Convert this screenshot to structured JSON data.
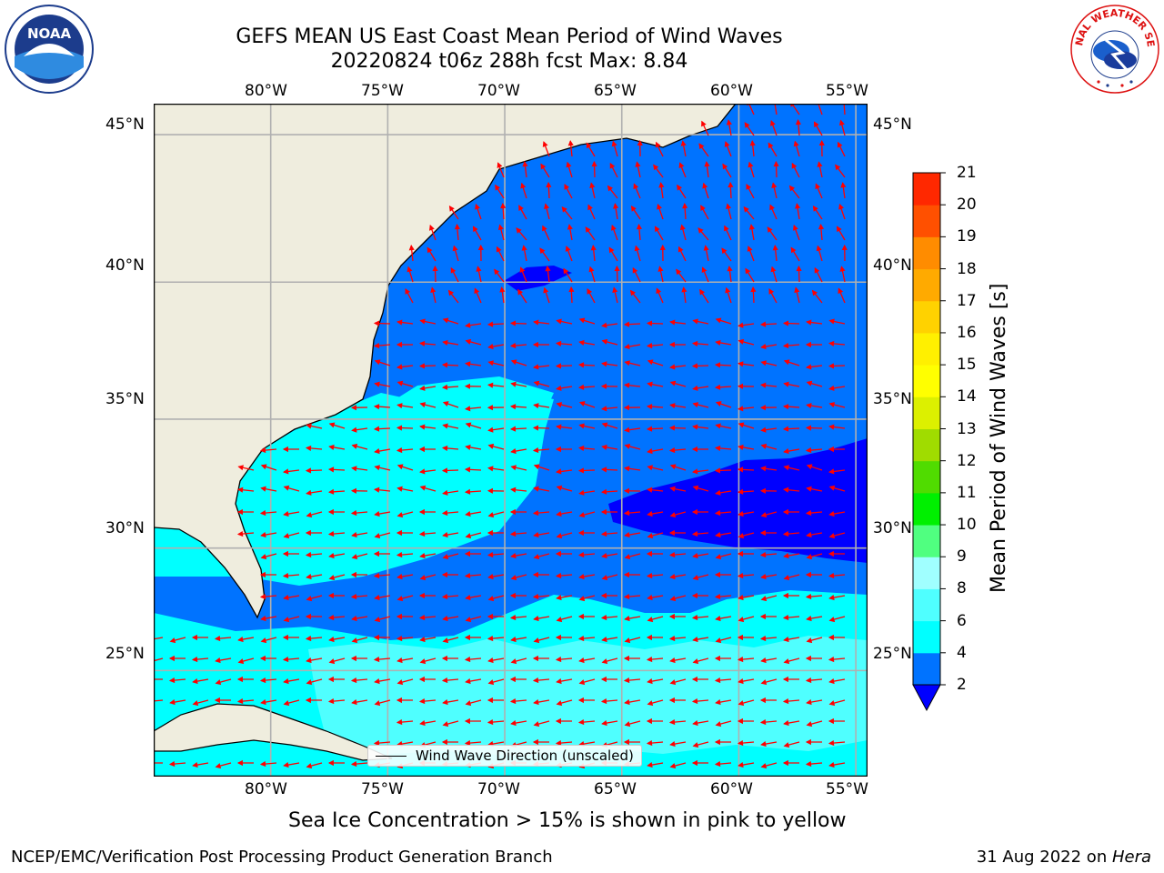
{
  "title": {
    "line1": "GEFS MEAN US East Coast Mean Period of Wind Waves",
    "line2": "20220824 t06z 288h fcst   Max: 8.84"
  },
  "logos": {
    "left": "NOAA",
    "right": "NATIONAL WEATHER SERVICE"
  },
  "axes": {
    "lon_ticks": [
      "80°W",
      "75°W",
      "70°W",
      "65°W",
      "60°W",
      "55°W"
    ],
    "lat_ticks": [
      "45°N",
      "40°N",
      "35°N",
      "30°N",
      "25°N"
    ]
  },
  "map": {
    "extent_lon": [
      -85,
      -54.5
    ],
    "extent_lat": [
      20.5,
      46
    ],
    "land_color": "#efedde",
    "coast_color": "#000000",
    "grid_color": "#b0b0b0",
    "arrow_color": "#ff0000"
  },
  "legend": {
    "label": "Wind Wave Direction (unscaled)"
  },
  "colorbar": {
    "label": "Mean Period of Wind Waves [s]",
    "ticks": [
      "2",
      "4",
      "6",
      "8",
      "9",
      "10",
      "11",
      "12",
      "13",
      "14",
      "15",
      "16",
      "17",
      "18",
      "19",
      "20",
      "21"
    ],
    "colors": [
      "#0073ff",
      "#00ffff",
      "#4fffff",
      "#a0ffff",
      "#50ff80",
      "#00f000",
      "#50dc00",
      "#a0dc00",
      "#dcf000",
      "#ffff00",
      "#fff000",
      "#ffd200",
      "#ffaa00",
      "#ff8c00",
      "#ff5000",
      "#ff2800",
      "#ff0000"
    ],
    "under_color": "#0000ff"
  },
  "chart_data": {
    "type": "heatmap",
    "title": "GEFS MEAN US East Coast Mean Period of Wind Waves",
    "subtitle": "20220824 t06z 288h fcst   Max: 8.84",
    "variable": "Mean Period of Wind Waves [s]",
    "max_value": 8.84,
    "xlim": [
      -85,
      -54.5
    ],
    "ylim": [
      20.5,
      46
    ],
    "approx_regions": [
      {
        "region": "East of 64W, 28-33N",
        "value_range": "< 2"
      },
      {
        "region": "Open ocean 33-45N",
        "value_range": "2-4"
      },
      {
        "region": "SE US coast / Bahamas",
        "value_range": "4-6"
      },
      {
        "region": "South of 27N, east of 70W",
        "value_range": "6-8"
      }
    ]
  },
  "notes": {
    "sea_ice": "Sea Ice Concentration > 15% is shown in pink to yellow"
  },
  "footer": {
    "left": "NCEP/EMC/Verification Post Processing Product Generation Branch",
    "right_date": "31 Aug 2022 on ",
    "right_host": "Hera"
  }
}
